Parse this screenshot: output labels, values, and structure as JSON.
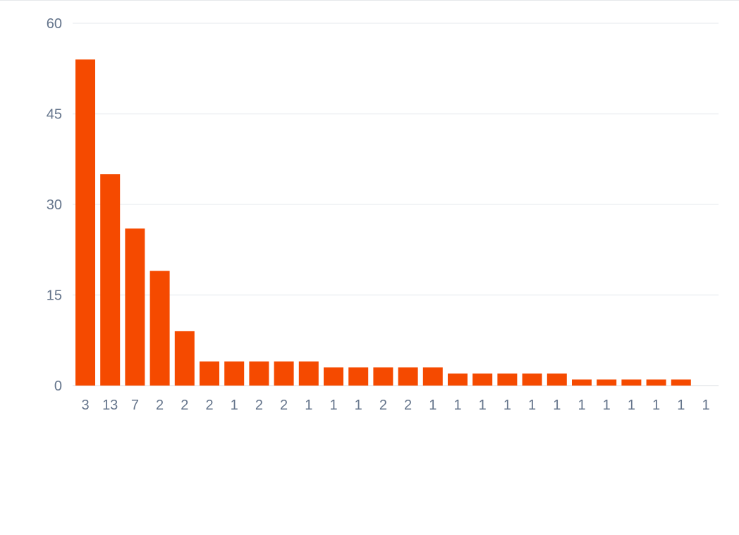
{
  "chart_data": {
    "type": "bar",
    "title": "",
    "xlabel": "",
    "ylabel": "",
    "ylim": [
      0,
      60
    ],
    "yticks": [
      "0",
      "15",
      "30",
      "45",
      "60"
    ],
    "grid": true,
    "categories": [
      "3",
      "13",
      "7",
      "2",
      "2",
      "2",
      "1",
      "2",
      "2",
      "1",
      "1",
      "1",
      "2",
      "2",
      "1",
      "1",
      "1",
      "1",
      "1",
      "1",
      "1",
      "1",
      "1",
      "1",
      "1",
      "1"
    ],
    "values": [
      54,
      35,
      26,
      19,
      9,
      4,
      4,
      4,
      4,
      4,
      3,
      3,
      3,
      3,
      3,
      2,
      2,
      2,
      2,
      2,
      1,
      1,
      1,
      1,
      1,
      0
    ],
    "bar_color": "#f54a00"
  }
}
